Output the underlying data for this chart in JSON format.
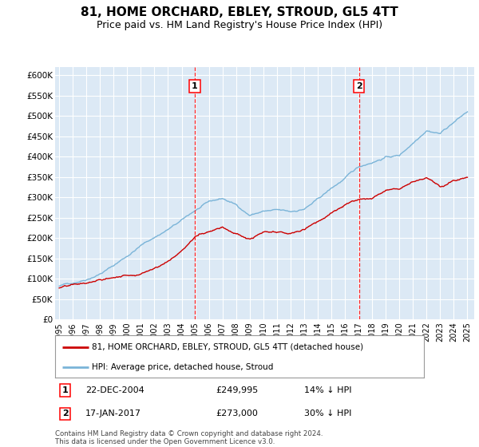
{
  "title": "81, HOME ORCHARD, EBLEY, STROUD, GL5 4TT",
  "subtitle": "Price paid vs. HM Land Registry's House Price Index (HPI)",
  "title_fontsize": 11,
  "subtitle_fontsize": 9,
  "background_color": "#ffffff",
  "plot_bg_color": "#dce9f5",
  "grid_color": "#ffffff",
  "hpi_color": "#7ab4d8",
  "price_color": "#cc0000",
  "ylim": [
    0,
    620000
  ],
  "yticks": [
    0,
    50000,
    100000,
    150000,
    200000,
    250000,
    300000,
    350000,
    400000,
    450000,
    500000,
    550000,
    600000
  ],
  "ytick_labels": [
    "£0",
    "£50K",
    "£100K",
    "£150K",
    "£200K",
    "£250K",
    "£300K",
    "£350K",
    "£400K",
    "£450K",
    "£500K",
    "£550K",
    "£600K"
  ],
  "marker1": {
    "year": 2004.97,
    "value": 249995,
    "label": "1",
    "date": "22-DEC-2004",
    "price": "£249,995",
    "note": "14% ↓ HPI"
  },
  "marker2": {
    "year": 2017.04,
    "value": 273000,
    "label": "2",
    "date": "17-JAN-2017",
    "price": "£273,000",
    "note": "30% ↓ HPI"
  },
  "legend_entry1": "81, HOME ORCHARD, EBLEY, STROUD, GL5 4TT (detached house)",
  "legend_entry2": "HPI: Average price, detached house, Stroud",
  "footer": "Contains HM Land Registry data © Crown copyright and database right 2024.\nThis data is licensed under the Open Government Licence v3.0.",
  "xtick_years": [
    1995,
    1996,
    1997,
    1998,
    1999,
    2000,
    2001,
    2002,
    2003,
    2004,
    2005,
    2006,
    2007,
    2008,
    2009,
    2010,
    2011,
    2012,
    2013,
    2014,
    2015,
    2016,
    2017,
    2018,
    2019,
    2020,
    2021,
    2022,
    2023,
    2024,
    2025
  ],
  "hpi_anchors_x": [
    1995,
    1996,
    1997,
    1998,
    1999,
    2000,
    2001,
    2002,
    2003,
    2004,
    2005,
    2006,
    2007,
    2008,
    2009,
    2010,
    2011,
    2012,
    2013,
    2014,
    2015,
    2016,
    2017,
    2018,
    2019,
    2020,
    2021,
    2022,
    2023,
    2024,
    2025
  ],
  "hpi_anchors_y": [
    82000,
    90000,
    102000,
    118000,
    138000,
    162000,
    188000,
    208000,
    228000,
    248000,
    272000,
    290000,
    298000,
    282000,
    258000,
    268000,
    268000,
    262000,
    270000,
    292000,
    318000,
    342000,
    368000,
    382000,
    396000,
    400000,
    432000,
    468000,
    462000,
    490000,
    515000
  ],
  "price_anchors_x": [
    1995,
    1997,
    1999,
    2001,
    2003,
    2004,
    2005,
    2007,
    2008,
    2009,
    2010,
    2012,
    2013,
    2014,
    2015,
    2016,
    2017,
    2018,
    2019,
    2020,
    2021,
    2022,
    2023,
    2024,
    2025
  ],
  "price_anchors_y": [
    78000,
    85000,
    98000,
    112000,
    148000,
    175000,
    210000,
    240000,
    225000,
    210000,
    225000,
    215000,
    225000,
    248000,
    268000,
    285000,
    300000,
    308000,
    325000,
    332000,
    355000,
    368000,
    348000,
    360000,
    368000
  ]
}
